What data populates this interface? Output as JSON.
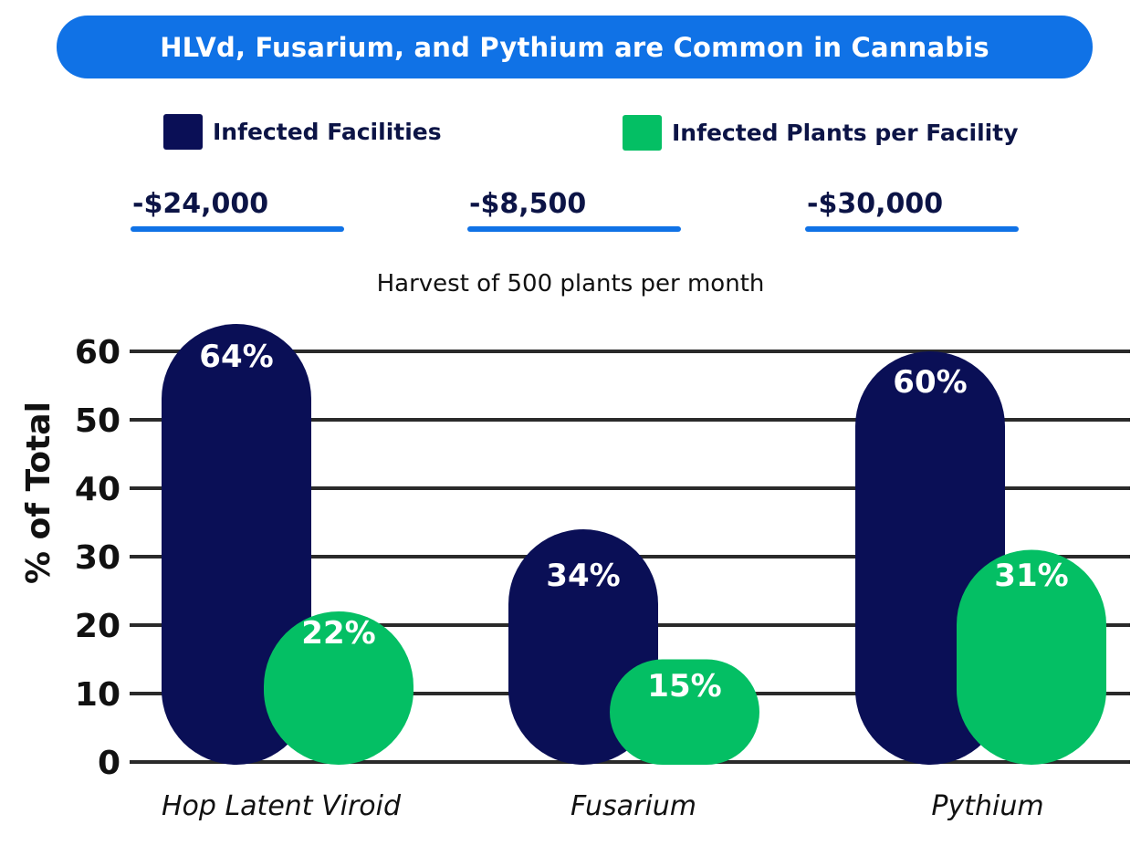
{
  "header": {
    "title": "HLVd, Fusarium, and Pythium are Common in Cannabis"
  },
  "legend": [
    {
      "label": "Infected Facilities",
      "color": "#0a0f56"
    },
    {
      "label": "Infected Plants per Facility",
      "color": "#04bf64"
    }
  ],
  "costs": [
    "-$24,000",
    "-$8,500",
    "-$30,000"
  ],
  "subtitle": "Harvest of 500 plants per month",
  "chart_data": {
    "type": "bar",
    "title": "HLVd, Fusarium, and Pythium are Common in Cannabis",
    "xlabel": "",
    "ylabel": "% of Total",
    "ylim": [
      0,
      60
    ],
    "yticks": [
      0,
      10,
      20,
      30,
      40,
      50,
      60
    ],
    "grid": true,
    "legend_position": "top",
    "categories": [
      "Hop Latent Viroid",
      "Fusarium",
      "Pythium"
    ],
    "series": [
      {
        "name": "Infected Facilities",
        "values": [
          64,
          34,
          60
        ],
        "labels": [
          "64%",
          "34%",
          "60%"
        ],
        "color": "#0a0f56"
      },
      {
        "name": "Infected Plants per Facility",
        "values": [
          22,
          15,
          31
        ],
        "labels": [
          "22%",
          "15%",
          "31%"
        ],
        "color": "#04bf64"
      }
    ]
  }
}
